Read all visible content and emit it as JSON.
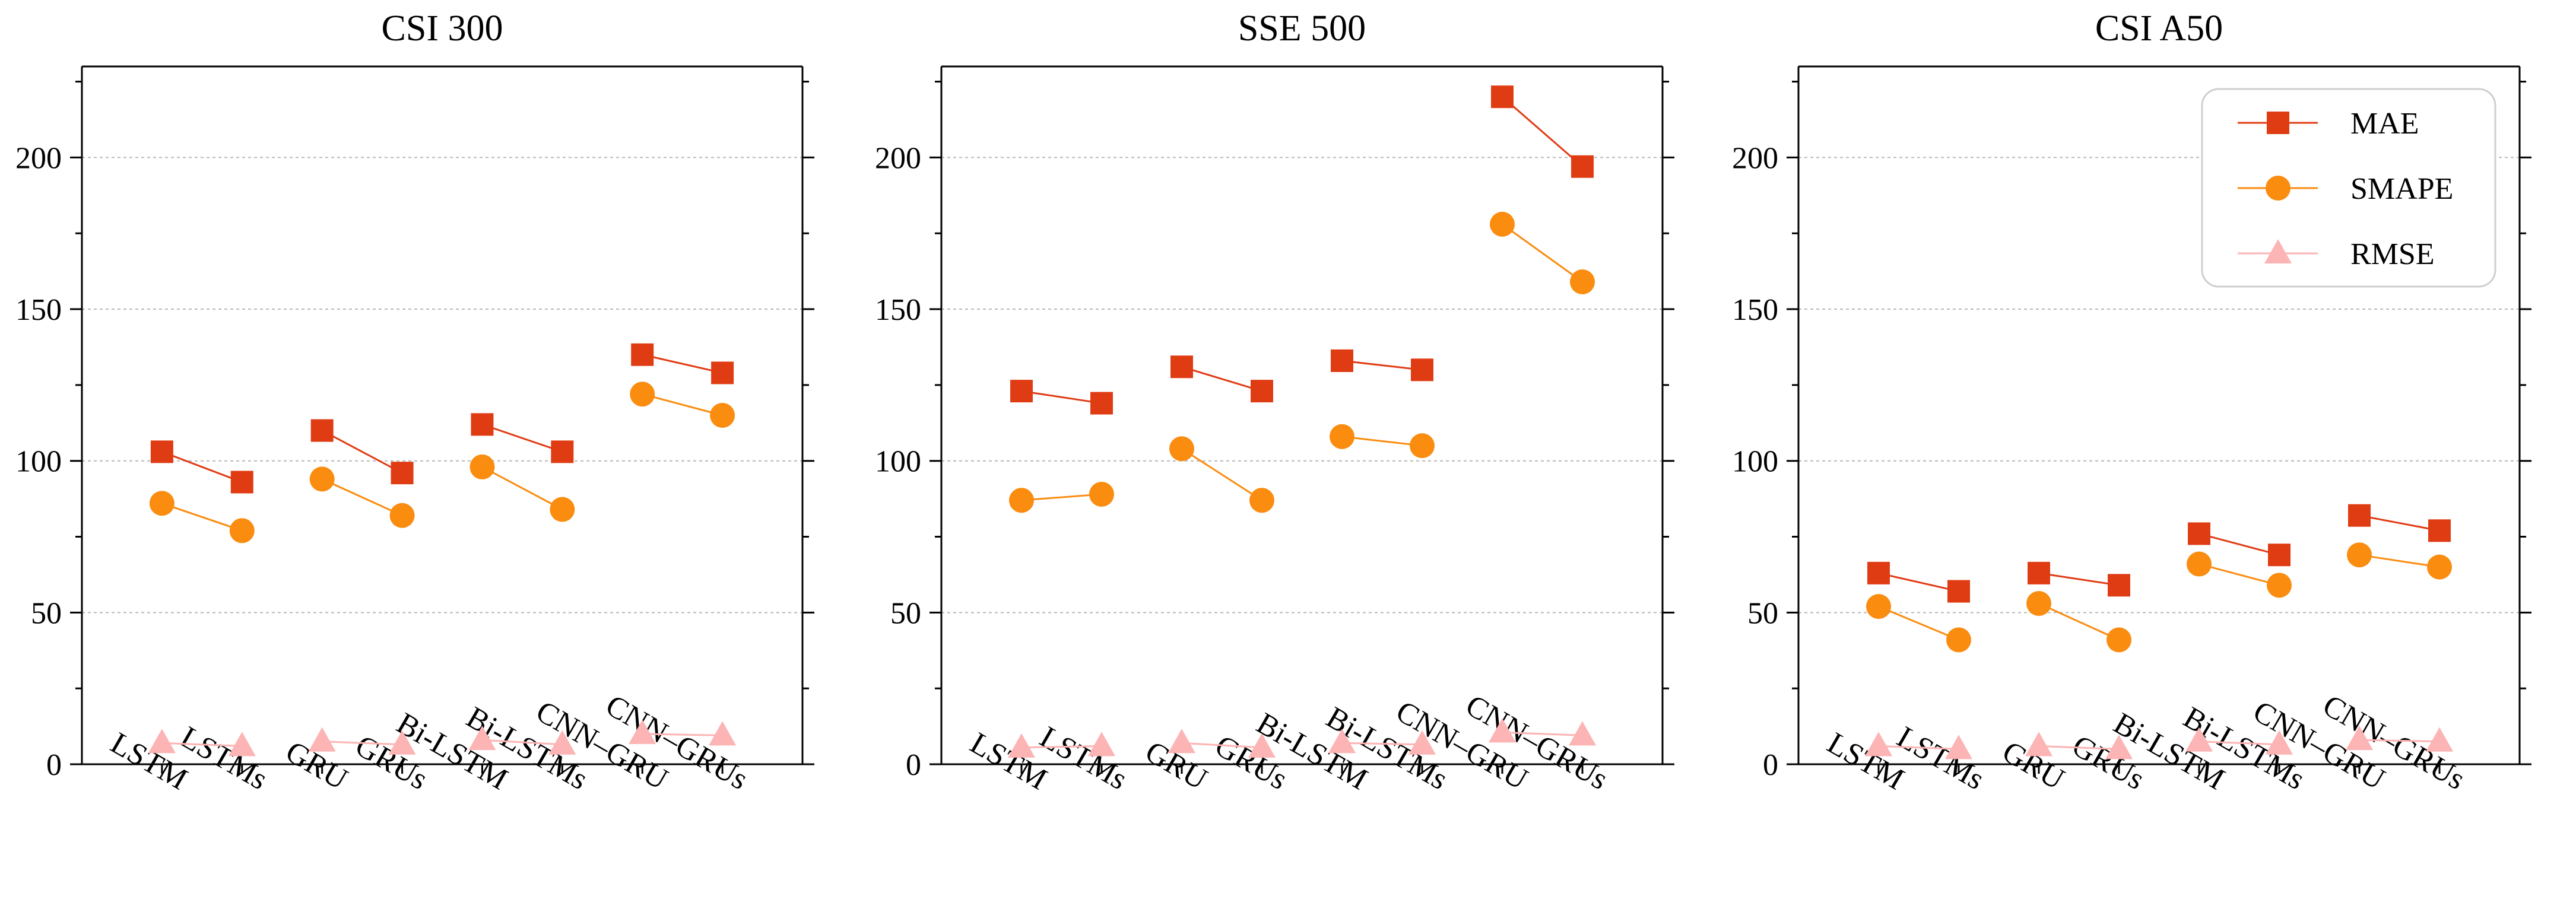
{
  "chart_data": [
    {
      "type": "line",
      "title": "CSI 300",
      "categories": [
        "LSTM",
        "LSTMs",
        "GRU",
        "GRUs",
        "Bi-LSTM",
        "Bi-LSTMs",
        "CNN–GRU",
        "CNN–GRUs"
      ],
      "ylim": [
        0,
        230
      ],
      "yticks": [
        0,
        50,
        100,
        150,
        200
      ],
      "grid": true,
      "pairing": [
        [
          0,
          1
        ],
        [
          2,
          3
        ],
        [
          4,
          5
        ],
        [
          6,
          7
        ]
      ],
      "series": [
        {
          "name": "MAE",
          "values": [
            103,
            93,
            110,
            96,
            112,
            103,
            135,
            129
          ]
        },
        {
          "name": "SMAPE",
          "values": [
            86,
            77,
            94,
            82,
            98,
            84,
            122,
            115
          ]
        },
        {
          "name": "RMSE",
          "values": [
            7,
            6,
            7.5,
            6.5,
            8,
            6.5,
            10,
            9.5
          ]
        }
      ]
    },
    {
      "type": "line",
      "title": "SSE 500",
      "categories": [
        "LSTM",
        "LSTMs",
        "GRU",
        "GRUs",
        "Bi-LSTM",
        "Bi-LSTMs",
        "CNN–GRU",
        "CNN–GRUs"
      ],
      "ylim": [
        0,
        230
      ],
      "yticks": [
        0,
        50,
        100,
        150,
        200
      ],
      "grid": true,
      "pairing": [
        [
          0,
          1
        ],
        [
          2,
          3
        ],
        [
          4,
          5
        ],
        [
          6,
          7
        ]
      ],
      "series": [
        {
          "name": "MAE",
          "values": [
            123,
            119,
            131,
            123,
            133,
            130,
            220,
            197
          ]
        },
        {
          "name": "SMAPE",
          "values": [
            87,
            89,
            104,
            87,
            108,
            105,
            178,
            159
          ]
        },
        {
          "name": "RMSE",
          "values": [
            5.5,
            6,
            7,
            5.5,
            7,
            6.5,
            10.5,
            9.5
          ]
        }
      ]
    },
    {
      "type": "line",
      "title": "CSI A50",
      "categories": [
        "LSTM",
        "LSTMs",
        "GRU",
        "GRUs",
        "Bi-LSTM",
        "Bi-LSTMs",
        "CNN–GRU",
        "CNN–GRUs"
      ],
      "ylim": [
        0,
        230
      ],
      "yticks": [
        0,
        50,
        100,
        150,
        200
      ],
      "grid": true,
      "pairing": [
        [
          0,
          1
        ],
        [
          2,
          3
        ],
        [
          4,
          5
        ],
        [
          6,
          7
        ]
      ],
      "legend": {
        "position": "top-right",
        "entries": [
          "MAE",
          "SMAPE",
          "RMSE"
        ]
      },
      "series": [
        {
          "name": "MAE",
          "values": [
            63,
            57,
            63,
            59,
            76,
            69,
            82,
            77
          ]
        },
        {
          "name": "SMAPE",
          "values": [
            52,
            41,
            53,
            41,
            66,
            59,
            69,
            65
          ]
        },
        {
          "name": "RMSE",
          "values": [
            6,
            5,
            6,
            5,
            7.5,
            6.5,
            8,
            7.5
          ]
        }
      ]
    }
  ],
  "series_style": {
    "MAE": {
      "marker": "square",
      "color": "#E03C14"
    },
    "SMAPE": {
      "marker": "circle",
      "color": "#FA8C10"
    },
    "RMSE": {
      "marker": "triangle",
      "color": "#FCB4B4"
    }
  }
}
